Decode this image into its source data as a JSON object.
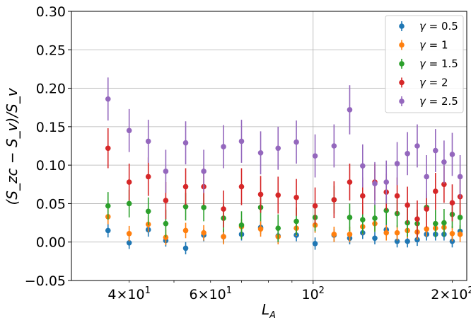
{
  "chart_data": {
    "type": "scatter",
    "xlabel_main": "L",
    "xlabel_sub": "A",
    "ylabel": "(S_zc − S_v)/S_v",
    "xscale": "log",
    "xlim": [
      30,
      215
    ],
    "ylim": [
      -0.05,
      0.3
    ],
    "grid": true,
    "legend_position": "top-right",
    "x_major_ticks": [
      {
        "value": 100,
        "base": "10",
        "exp": "2"
      }
    ],
    "x_minor_ticks": [
      {
        "value": 40,
        "mant": "4",
        "base": "10",
        "exp": "1"
      },
      {
        "value": 60,
        "mant": "6",
        "base": "10",
        "exp": "1"
      },
      {
        "value": 200,
        "mant": "2",
        "base": "10",
        "exp": "2"
      }
    ],
    "y_ticks": [
      {
        "value": -0.05,
        "label": "−0.05"
      },
      {
        "value": 0.0,
        "label": "0.00"
      },
      {
        "value": 0.05,
        "label": "0.05"
      },
      {
        "value": 0.1,
        "label": "0.10"
      },
      {
        "value": 0.15,
        "label": "0.15"
      },
      {
        "value": 0.2,
        "label": "0.20"
      },
      {
        "value": 0.25,
        "label": "0.25"
      },
      {
        "value": 0.3,
        "label": "0.30"
      }
    ],
    "x": [
      36,
      40,
      44,
      48,
      53,
      58,
      64,
      70,
      77,
      84,
      92,
      101,
      111,
      120,
      128,
      136,
      144,
      152,
      160,
      168,
      176,
      184,
      192,
      200,
      208
    ],
    "series": [
      {
        "name": "γ = 0.5",
        "gamma": "0.5",
        "color": "#1f77b4",
        "y": [
          0.015,
          -0.001,
          0.016,
          0.002,
          -0.008,
          0.009,
          0.007,
          0.01,
          0.019,
          0.008,
          0.009,
          -0.002,
          0.009,
          0.005,
          0.012,
          0.005,
          0.016,
          0.001,
          0.001,
          0.003,
          0.01,
          0.01,
          0.01,
          0.001,
          0.014
        ],
        "err": [
          0.009,
          0.008,
          0.009,
          0.008,
          0.008,
          0.008,
          0.008,
          0.008,
          0.008,
          0.008,
          0.008,
          0.008,
          0.008,
          0.008,
          0.008,
          0.008,
          0.008,
          0.008,
          0.008,
          0.008,
          0.008,
          0.008,
          0.008,
          0.008,
          0.008
        ]
      },
      {
        "name": "γ = 1",
        "gamma": "1",
        "color": "#ff7f0e",
        "y": [
          0.033,
          0.011,
          0.023,
          0.006,
          0.015,
          0.012,
          0.007,
          0.02,
          0.017,
          0.007,
          0.018,
          0.022,
          0.01,
          0.01,
          0.02,
          0.024,
          0.012,
          0.012,
          0.015,
          0.013,
          0.017,
          0.018,
          0.019,
          0.011,
          0.01
        ],
        "err": [
          0.01,
          0.01,
          0.01,
          0.01,
          0.01,
          0.01,
          0.01,
          0.01,
          0.01,
          0.01,
          0.01,
          0.01,
          0.01,
          0.01,
          0.01,
          0.01,
          0.01,
          0.01,
          0.01,
          0.01,
          0.01,
          0.01,
          0.01,
          0.01,
          0.01
        ]
      },
      {
        "name": "γ = 1.5",
        "gamma": "1.5",
        "color": "#2ca02c",
        "y": [
          0.047,
          0.05,
          0.04,
          0.024,
          0.046,
          0.045,
          0.031,
          0.022,
          0.045,
          0.018,
          0.027,
          0.032,
          0.055,
          0.032,
          0.029,
          0.031,
          0.041,
          0.037,
          0.025,
          0.024,
          0.045,
          0.024,
          0.025,
          0.036,
          0.032
        ],
        "err": [
          0.018,
          0.018,
          0.018,
          0.018,
          0.018,
          0.018,
          0.018,
          0.018,
          0.018,
          0.018,
          0.018,
          0.018,
          0.018,
          0.018,
          0.018,
          0.018,
          0.018,
          0.018,
          0.018,
          0.018,
          0.018,
          0.018,
          0.018,
          0.018,
          0.018
        ]
      },
      {
        "name": "γ = 2",
        "gamma": "2",
        "color": "#d62728",
        "y": [
          0.122,
          0.078,
          0.085,
          0.054,
          0.072,
          0.072,
          0.043,
          0.072,
          0.062,
          0.061,
          0.058,
          0.047,
          0.055,
          0.078,
          0.06,
          0.078,
          0.065,
          0.06,
          0.048,
          0.03,
          0.043,
          0.066,
          0.075,
          0.051,
          0.059
        ],
        "err": [
          0.026,
          0.024,
          0.025,
          0.024,
          0.024,
          0.024,
          0.024,
          0.024,
          0.024,
          0.024,
          0.024,
          0.024,
          0.024,
          0.024,
          0.024,
          0.024,
          0.024,
          0.024,
          0.024,
          0.024,
          0.024,
          0.024,
          0.024,
          0.024,
          0.024
        ]
      },
      {
        "name": "γ = 2.5",
        "gamma": "2.5",
        "color": "#9467bd",
        "y": [
          0.186,
          0.145,
          0.131,
          0.092,
          0.129,
          0.092,
          0.124,
          0.131,
          0.116,
          0.122,
          0.13,
          0.112,
          0.125,
          0.172,
          0.099,
          0.076,
          0.078,
          0.102,
          0.115,
          0.125,
          0.085,
          0.119,
          0.104,
          0.114,
          0.085
        ],
        "err": [
          0.028,
          0.028,
          0.028,
          0.028,
          0.028,
          0.028,
          0.028,
          0.028,
          0.028,
          0.028,
          0.028,
          0.028,
          0.028,
          0.032,
          0.028,
          0.028,
          0.028,
          0.028,
          0.028,
          0.028,
          0.028,
          0.028,
          0.028,
          0.028,
          0.028
        ]
      }
    ]
  }
}
